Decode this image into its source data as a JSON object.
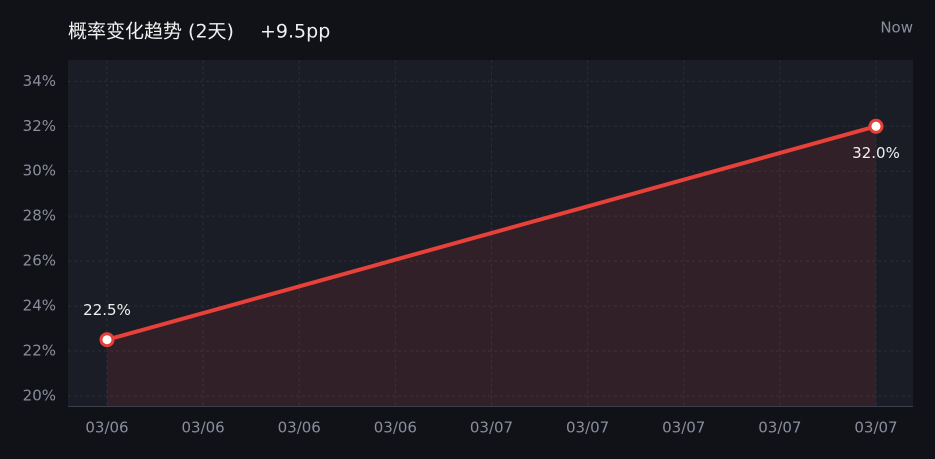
{
  "chart_data": {
    "type": "line",
    "title": "概率变化趋势 (2天)",
    "subtitle": "+9.5pp",
    "annotation": "Now",
    "categories": [
      "03/06",
      "03/06",
      "03/06",
      "03/06",
      "03/07",
      "03/07",
      "03/07",
      "03/07",
      "03/07"
    ],
    "x": [
      "03/06",
      "03/07"
    ],
    "series": [
      {
        "color": "#e8413a",
        "values": [
          22.5,
          32.0
        ],
        "value_labels": [
          "22.5%",
          "32.0%"
        ]
      }
    ],
    "ylim": [
      19.55,
      34.95
    ],
    "yticks": [
      {
        "value": 20,
        "label": "20%"
      },
      {
        "value": 22,
        "label": "22%"
      },
      {
        "value": 24,
        "label": "24%"
      },
      {
        "value": 26,
        "label": "26%"
      },
      {
        "value": 28,
        "label": "28%"
      },
      {
        "value": 30,
        "label": "30%"
      },
      {
        "value": 32,
        "label": "32%"
      },
      {
        "value": 34,
        "label": "34%"
      }
    ],
    "grid": true
  }
}
